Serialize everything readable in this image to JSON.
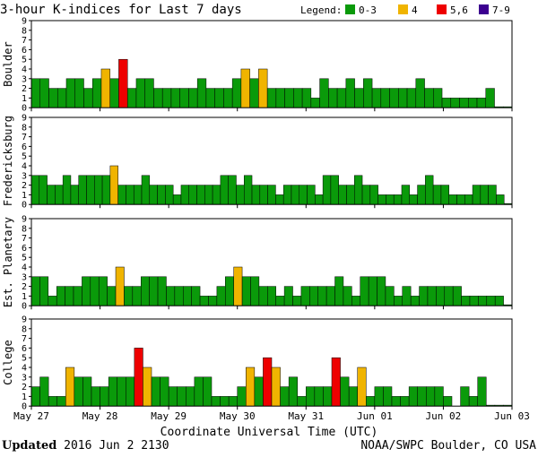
{
  "chart_data": {
    "type": "bar",
    "title": "3-hour K-indices for Last 7 days",
    "legend_label": "Legend:",
    "legend": [
      {
        "label": "0-3",
        "color": "#0a9a0a"
      },
      {
        "label": "4",
        "color": "#f0b400"
      },
      {
        "label": "5,6",
        "color": "#ee0000"
      },
      {
        "label": "7-9",
        "color": "#3c0090"
      }
    ],
    "ylim": [
      0,
      9
    ],
    "yticks": [
      "0",
      "1",
      "2",
      "3",
      "4",
      "5",
      "6",
      "7",
      "8",
      "9"
    ],
    "xlabel": "Coordinate Universal Time (UTC)",
    "xticks": [
      "May 27",
      "May 28",
      "May 29",
      "May 30",
      "May 31",
      "Jun 01",
      "Jun 02",
      "Jun 03"
    ],
    "series": [
      {
        "name": "Boulder",
        "values": [
          3,
          3,
          2,
          2,
          3,
          3,
          2,
          3,
          4,
          3,
          5,
          2,
          3,
          3,
          2,
          2,
          2,
          2,
          2,
          3,
          2,
          2,
          2,
          3,
          4,
          3,
          4,
          2,
          2,
          2,
          2,
          2,
          1,
          3,
          2,
          2,
          3,
          2,
          3,
          2,
          2,
          2,
          2,
          2,
          3,
          2,
          2,
          1,
          1,
          1,
          1,
          1,
          2,
          0.1,
          0.1
        ]
      },
      {
        "name": "Fredericksburg",
        "values": [
          3,
          3,
          2,
          2,
          3,
          2,
          3,
          3,
          3,
          3,
          4,
          2,
          2,
          2,
          3,
          2,
          2,
          2,
          1,
          2,
          2,
          2,
          2,
          2,
          3,
          3,
          2,
          3,
          2,
          2,
          2,
          1,
          2,
          2,
          2,
          2,
          1,
          3,
          3,
          2,
          2,
          3,
          2,
          2,
          1,
          1,
          1,
          2,
          1,
          2,
          3,
          2,
          2,
          1,
          1,
          1,
          2,
          2,
          2,
          1,
          0.1
        ]
      },
      {
        "name": "Est. Planetary",
        "values": [
          3,
          3,
          1,
          2,
          2,
          2,
          3,
          3,
          3,
          2,
          4,
          2,
          2,
          3,
          3,
          3,
          2,
          2,
          2,
          2,
          1,
          1,
          2,
          3,
          4,
          3,
          3,
          2,
          2,
          1,
          2,
          1,
          2,
          2,
          2,
          2,
          3,
          2,
          1,
          3,
          3,
          3,
          2,
          1,
          2,
          1,
          2,
          2,
          2,
          2,
          2,
          1,
          1,
          1,
          1,
          1,
          0.1
        ]
      },
      {
        "name": "College",
        "values": [
          2,
          3,
          1,
          1,
          4,
          3,
          3,
          2,
          2,
          3,
          3,
          3,
          6,
          4,
          3,
          3,
          2,
          2,
          2,
          3,
          3,
          1,
          1,
          1,
          2,
          4,
          3,
          5,
          4,
          2,
          3,
          1,
          2,
          2,
          2,
          5,
          3,
          2,
          4,
          1,
          2,
          2,
          1,
          1,
          2,
          2,
          2,
          2,
          1,
          0,
          2,
          1,
          3,
          0.1,
          0.1,
          0.1
        ]
      }
    ]
  },
  "footer": {
    "updated_label": "Updated",
    "updated_time": "2016 Jun  2 2130",
    "source": "NOAA/SWPC Boulder, CO USA"
  }
}
